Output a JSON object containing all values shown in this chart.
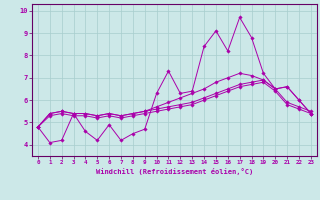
{
  "xlabel": "Windchill (Refroidissement éolien,°C)",
  "xlim": [
    -0.5,
    23.5
  ],
  "ylim": [
    3.5,
    10.3
  ],
  "yticks": [
    4,
    5,
    6,
    7,
    8,
    9,
    10
  ],
  "xticks": [
    0,
    1,
    2,
    3,
    4,
    5,
    6,
    7,
    8,
    9,
    10,
    11,
    12,
    13,
    14,
    15,
    16,
    17,
    18,
    19,
    20,
    21,
    22,
    23
  ],
  "bg_color": "#cce8e8",
  "grid_color": "#a8cece",
  "line_color": "#aa00aa",
  "spine_color": "#660066",
  "series": [
    [
      4.8,
      4.1,
      4.2,
      5.4,
      4.6,
      4.2,
      4.9,
      4.2,
      4.5,
      4.7,
      6.3,
      7.3,
      6.3,
      6.4,
      8.4,
      9.1,
      8.2,
      9.7,
      8.8,
      7.2,
      6.5,
      6.6,
      6.0,
      5.4
    ],
    [
      4.8,
      5.4,
      5.5,
      5.4,
      5.4,
      5.3,
      5.4,
      5.3,
      5.4,
      5.5,
      5.6,
      5.7,
      5.8,
      5.9,
      6.1,
      6.3,
      6.5,
      6.7,
      6.8,
      6.9,
      6.5,
      5.9,
      5.7,
      5.5
    ],
    [
      4.8,
      5.4,
      5.5,
      5.4,
      5.4,
      5.3,
      5.4,
      5.3,
      5.4,
      5.5,
      5.7,
      5.9,
      6.1,
      6.3,
      6.5,
      6.8,
      7.0,
      7.2,
      7.1,
      6.9,
      6.5,
      6.6,
      6.0,
      5.4
    ],
    [
      4.8,
      5.3,
      5.4,
      5.3,
      5.3,
      5.2,
      5.3,
      5.2,
      5.3,
      5.4,
      5.5,
      5.6,
      5.7,
      5.8,
      6.0,
      6.2,
      6.4,
      6.6,
      6.7,
      6.8,
      6.4,
      5.8,
      5.6,
      5.4
    ]
  ]
}
